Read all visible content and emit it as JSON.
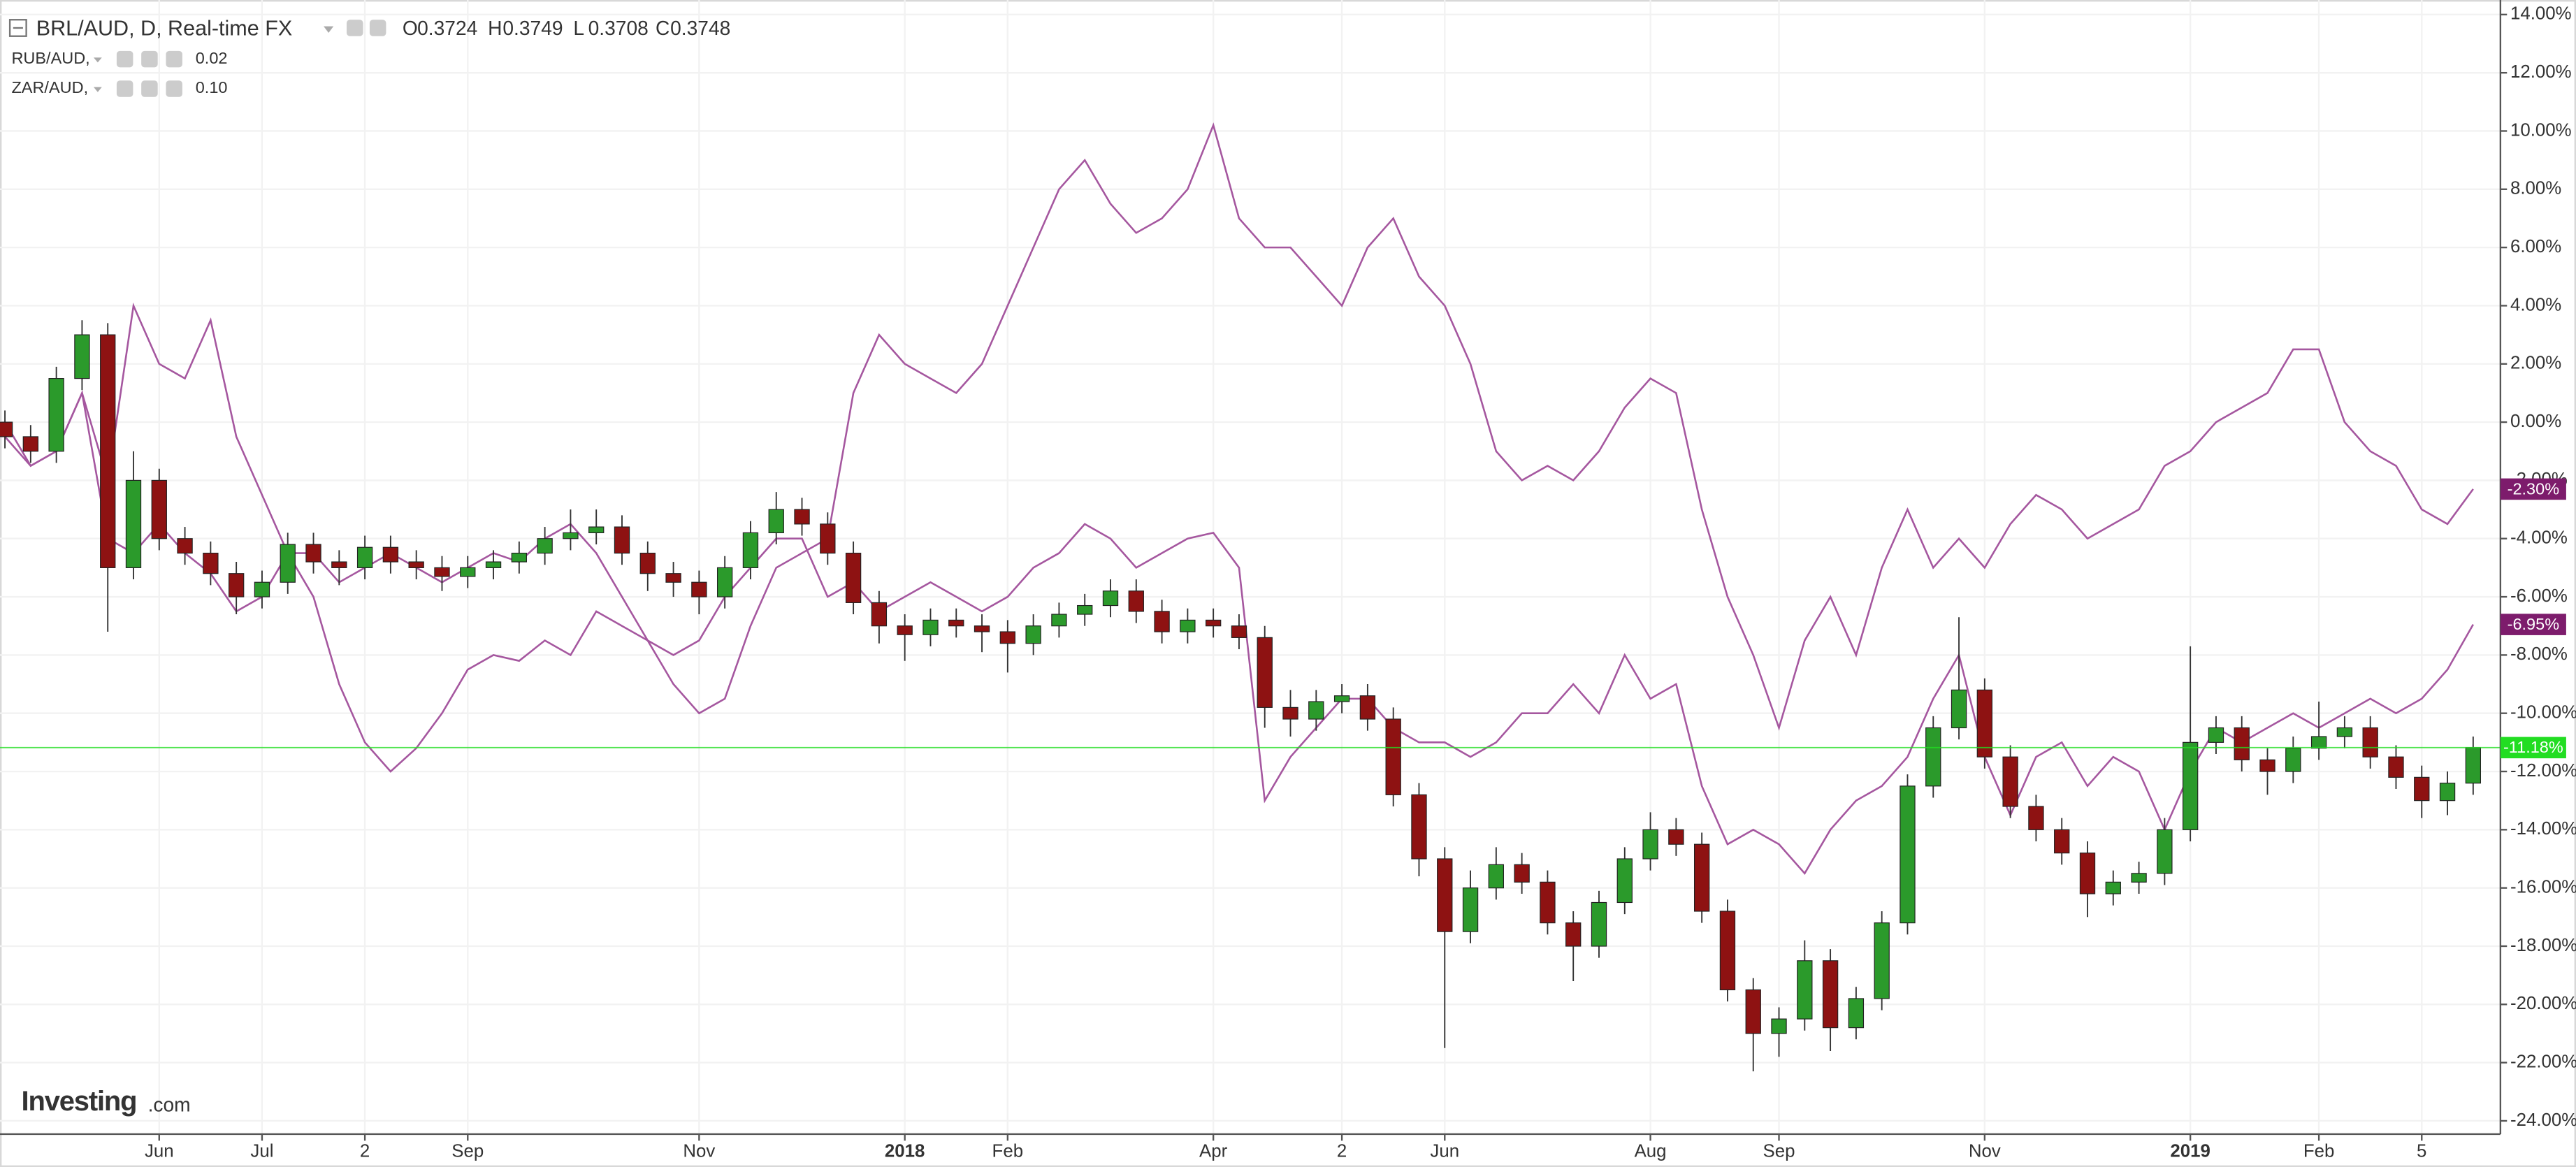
{
  "chart_data": {
    "type": "candlestick",
    "title": "BRL/AUD, D, Real-time FX",
    "ohlc_header": {
      "labels": [
        "O",
        "H",
        "L",
        "C"
      ],
      "values": [
        0.3724,
        0.3749,
        0.3708,
        0.3748
      ]
    },
    "categories": [
      null,
      null,
      null,
      null,
      null,
      null,
      "Jun",
      null,
      null,
      null,
      "Jul",
      null,
      null,
      null,
      "2",
      null,
      null,
      null,
      "Sep",
      null,
      null,
      null,
      null,
      null,
      null,
      null,
      null,
      "Nov",
      null,
      null,
      null,
      null,
      null,
      null,
      null,
      "2018",
      null,
      null,
      null,
      "Feb",
      null,
      null,
      null,
      null,
      null,
      null,
      null,
      "Apr",
      null,
      null,
      null,
      null,
      "2",
      null,
      null,
      null,
      "Jun",
      null,
      null,
      null,
      null,
      null,
      null,
      null,
      "Aug",
      null,
      null,
      null,
      null,
      "Sep",
      null,
      null,
      null,
      null,
      null,
      null,
      null,
      "Nov",
      null,
      null,
      null,
      null,
      null,
      null,
      null,
      "2019",
      null,
      null,
      null,
      null,
      "Feb",
      null,
      null,
      null,
      "5",
      null,
      null
    ],
    "candles": {
      "up_color": "#2b9a2b",
      "down_color": "#8e1212",
      "open": [
        0,
        -0.5,
        -1.0,
        1.5,
        3.0,
        -5.0,
        -2.0,
        -4.0,
        -4.5,
        -5.2,
        -6.0,
        -5.5,
        -4.2,
        -4.8,
        -5.0,
        -4.3,
        -4.8,
        -5.0,
        -5.3,
        -5.0,
        -4.8,
        -4.5,
        -4.0,
        -3.8,
        -3.6,
        -4.5,
        -5.2,
        -5.5,
        -6.0,
        -5.0,
        -3.8,
        -3.0,
        -3.5,
        -4.5,
        -6.2,
        -7.0,
        -7.3,
        -6.8,
        -7.0,
        -7.2,
        -7.6,
        -7.0,
        -6.6,
        -6.3,
        -5.8,
        -6.5,
        -7.2,
        -6.8,
        -7.0,
        -7.4,
        -9.8,
        -10.2,
        -9.6,
        -9.4,
        -10.2,
        -12.8,
        -15.0,
        -17.5,
        -16.0,
        -15.2,
        -15.8,
        -17.2,
        -18.0,
        -16.5,
        -15.0,
        -14.0,
        -14.5,
        -16.8,
        -19.5,
        -21.0,
        -20.5,
        -18.5,
        -20.8,
        -19.8,
        -17.2,
        -12.5,
        -10.5,
        -9.2,
        -11.5,
        -13.2,
        -14.0,
        -14.8,
        -16.2,
        -15.8,
        -15.5,
        -14.0,
        -11.0,
        -10.5,
        -11.6,
        -12.0,
        -11.2,
        -10.8,
        -10.5,
        -11.5,
        -12.2,
        -13.0,
        -12.4
      ],
      "high": [
        0.4,
        -0.1,
        1.9,
        3.5,
        3.4,
        -1.0,
        -1.6,
        -3.6,
        -4.1,
        -4.8,
        -5.1,
        -3.8,
        -3.8,
        -4.4,
        -3.9,
        -3.9,
        -4.4,
        -4.6,
        -4.6,
        -4.4,
        -4.1,
        -3.6,
        -3.0,
        -3.0,
        -3.2,
        -4.1,
        -4.8,
        -5.1,
        -4.6,
        -3.4,
        -2.4,
        -2.6,
        -3.1,
        -4.1,
        -5.8,
        -6.6,
        -6.4,
        -6.4,
        -6.6,
        -6.8,
        -6.6,
        -6.2,
        -5.9,
        -5.4,
        -5.4,
        -6.1,
        -6.4,
        -6.4,
        -6.6,
        -7.0,
        -9.2,
        -9.2,
        -9.0,
        -9.0,
        -9.8,
        -12.4,
        -14.6,
        -15.4,
        -14.6,
        -14.8,
        -15.4,
        -16.8,
        -16.1,
        -14.6,
        -13.4,
        -13.6,
        -14.1,
        -16.4,
        -19.1,
        -20.1,
        -17.8,
        -18.1,
        -19.4,
        -16.8,
        -12.1,
        -10.1,
        -6.7,
        -8.8,
        -11.1,
        -12.8,
        -13.6,
        -14.4,
        -15.4,
        -15.1,
        -13.6,
        -7.7,
        -10.1,
        -10.1,
        -11.2,
        -10.8,
        -9.6,
        -10.1,
        -10.1,
        -11.1,
        -11.8,
        -12.0,
        -10.8
      ],
      "low": [
        -0.9,
        -1.4,
        -1.4,
        1.1,
        -7.2,
        -5.4,
        -4.4,
        -4.9,
        -5.6,
        -6.6,
        -6.4,
        -5.9,
        -5.2,
        -5.6,
        -5.4,
        -5.2,
        -5.4,
        -5.8,
        -5.7,
        -5.4,
        -5.2,
        -4.9,
        -4.4,
        -4.2,
        -4.9,
        -5.8,
        -6.0,
        -6.6,
        -6.4,
        -5.4,
        -4.2,
        -3.9,
        -4.9,
        -6.6,
        -7.6,
        -8.2,
        -7.7,
        -7.4,
        -7.9,
        -8.6,
        -8.0,
        -7.4,
        -7.0,
        -6.7,
        -6.9,
        -7.6,
        -7.6,
        -7.4,
        -7.8,
        -10.5,
        -10.8,
        -10.6,
        -10.0,
        -10.6,
        -13.2,
        -15.6,
        -21.5,
        -17.9,
        -16.4,
        -16.2,
        -17.6,
        -19.2,
        -18.4,
        -16.9,
        -15.4,
        -14.9,
        -17.2,
        -19.9,
        -22.3,
        -21.8,
        -20.9,
        -21.6,
        -21.2,
        -20.2,
        -17.6,
        -12.9,
        -10.9,
        -11.9,
        -13.6,
        -14.4,
        -15.2,
        -17.0,
        -16.6,
        -16.2,
        -15.9,
        -14.4,
        -11.4,
        -12.0,
        -12.8,
        -12.4,
        -11.6,
        -11.2,
        -11.9,
        -12.6,
        -13.6,
        -13.5,
        -12.8
      ],
      "close": [
        -0.5,
        -1.0,
        1.5,
        3.0,
        -5.0,
        -2.0,
        -4.0,
        -4.5,
        -5.2,
        -6.0,
        -5.5,
        -4.2,
        -4.8,
        -5.0,
        -4.3,
        -4.8,
        -5.0,
        -5.3,
        -5.0,
        -4.8,
        -4.5,
        -4.0,
        -3.8,
        -3.6,
        -4.5,
        -5.2,
        -5.5,
        -6.0,
        -5.0,
        -3.8,
        -3.0,
        -3.5,
        -4.5,
        -6.2,
        -7.0,
        -7.3,
        -6.8,
        -7.0,
        -7.2,
        -7.6,
        -7.0,
        -6.6,
        -6.3,
        -5.8,
        -6.5,
        -7.2,
        -6.8,
        -7.0,
        -7.4,
        -9.8,
        -10.2,
        -9.6,
        -9.4,
        -10.2,
        -12.8,
        -15.0,
        -17.5,
        -16.0,
        -15.2,
        -15.8,
        -17.2,
        -18.0,
        -16.5,
        -15.0,
        -14.0,
        -14.5,
        -16.8,
        -19.5,
        -21.0,
        -20.5,
        -18.5,
        -20.8,
        -19.8,
        -17.2,
        -12.5,
        -10.5,
        -9.2,
        -11.5,
        -13.2,
        -14.0,
        -14.8,
        -16.2,
        -15.8,
        -15.5,
        -14.0,
        -11.0,
        -10.5,
        -11.6,
        -12.0,
        -11.2,
        -10.8,
        -10.5,
        -11.5,
        -12.2,
        -13.0,
        -12.4,
        -11.18
      ],
      "last_label": "-11.18%",
      "last_color": "#22dd22"
    },
    "series": [
      {
        "name": "RUB/AUD,",
        "color": "#a5579f",
        "legend_value": 0.02,
        "last_value": -6.95,
        "last_label": "-6.95%",
        "badge_color": "#7d1c6c",
        "values": [
          -0.5,
          -1.5,
          -1,
          1,
          -4,
          -4.5,
          -3.5,
          -4.5,
          -5.2,
          -6.5,
          -6,
          -4.5,
          -4.5,
          -5.5,
          -5,
          -4.5,
          -5,
          -5.5,
          -5,
          -4.5,
          -4.8,
          -4,
          -3.5,
          -4.5,
          -6,
          -7.5,
          -8,
          -7.5,
          -6,
          -5,
          -4,
          -4,
          -6,
          -5.5,
          -6.5,
          -6,
          -5.5,
          -6,
          -6.5,
          -6,
          -5,
          -4.5,
          -3.5,
          -4,
          -5,
          -4.5,
          -4,
          -3.8,
          -5,
          -13,
          -11.5,
          -10.5,
          -9.5,
          -9.5,
          -10.5,
          -11,
          -11,
          -11.5,
          -11,
          -10,
          -10,
          -9,
          -10,
          -8,
          -9.5,
          -9,
          -12.5,
          -14.5,
          -14,
          -14.5,
          -15.5,
          -14,
          -13,
          -12.5,
          -11.5,
          -9.5,
          -8,
          -11.5,
          -13.5,
          -11.5,
          -11,
          -12.5,
          -11.5,
          -12,
          -14,
          -12,
          -10.5,
          -11,
          -10.5,
          -10,
          -10.5,
          -10,
          -9.5,
          -10,
          -9.5,
          -8.5,
          -6.95
        ]
      },
      {
        "name": "ZAR/AUD,",
        "color": "#a5579f",
        "legend_value": 0.1,
        "last_value": -2.3,
        "last_label": "-2.30%",
        "badge_color": "#7d1c6c",
        "values": [
          0,
          -1.5,
          -1,
          1,
          -2,
          4,
          2,
          1.5,
          3.5,
          -0.5,
          -2.5,
          -4.5,
          -6,
          -9,
          -11,
          -12,
          -11.2,
          -10,
          -8.5,
          -8,
          -8.2,
          -7.5,
          -8,
          -6.5,
          -7,
          -7.5,
          -9,
          -10,
          -9.5,
          -7,
          -5,
          -4.5,
          -4,
          1,
          3,
          2,
          1.5,
          1,
          2,
          4,
          6,
          8,
          9,
          7.5,
          6.5,
          7,
          8,
          10.2,
          7,
          6,
          6,
          5,
          4,
          6,
          7,
          5,
          4,
          2,
          -1,
          -2,
          -1.5,
          -2,
          -1,
          0.5,
          1.5,
          1,
          -3,
          -6,
          -8,
          -10.5,
          -7.5,
          -6,
          -8,
          -5,
          -3,
          -5,
          -4,
          -5,
          -3.5,
          -2.5,
          -3,
          -4,
          -3.5,
          -3,
          -1.5,
          -1,
          0,
          0.5,
          1,
          2.5,
          2.5,
          0,
          -1,
          -1.5,
          -3,
          -3.5,
          -2.3
        ]
      }
    ],
    "ylim": [
      -24.4,
      14.5
    ],
    "yticks": [
      {
        "value": 14,
        "label": "14.00%"
      },
      {
        "value": 12,
        "label": "12.00%"
      },
      {
        "value": 10,
        "label": "10.00%"
      },
      {
        "value": 8,
        "label": "8.00%"
      },
      {
        "value": 6,
        "label": "6.00%"
      },
      {
        "value": 4,
        "label": "4.00%"
      },
      {
        "value": 2,
        "label": "2.00%"
      },
      {
        "value": 0,
        "label": "0.00%"
      },
      {
        "value": -2,
        "label": "-2.00%"
      },
      {
        "value": -4,
        "label": "-4.00%"
      },
      {
        "value": -6,
        "label": "-6.00%"
      },
      {
        "value": -8,
        "label": "-8.00%"
      },
      {
        "value": -10,
        "label": "-10.00%"
      },
      {
        "value": -12,
        "label": "-12.00%"
      },
      {
        "value": -14,
        "label": "-14.00%"
      },
      {
        "value": -16,
        "label": "-16.00%"
      },
      {
        "value": -18,
        "label": "-18.00%"
      },
      {
        "value": -20,
        "label": "-20.00%"
      },
      {
        "value": -22,
        "label": "-22.00%"
      },
      {
        "value": -24,
        "label": "-24.00%"
      }
    ],
    "grid": true,
    "logo": {
      "name": "Investing",
      "suffix": ".com"
    }
  }
}
